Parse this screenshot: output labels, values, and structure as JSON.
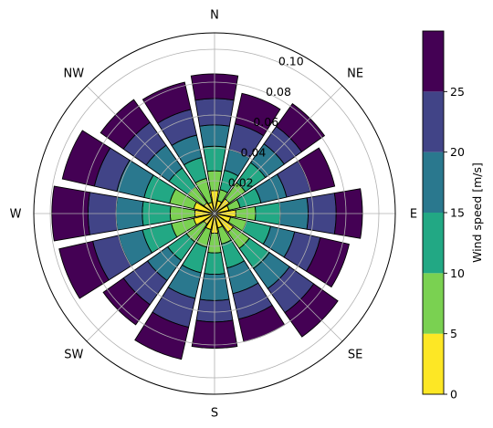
{
  "chart_data": {
    "type": "polar-bar",
    "title": "",
    "directions": [
      "N",
      "NE",
      "E",
      "SE",
      "S",
      "SW",
      "W",
      "NW"
    ],
    "radial_ticks": [
      0.02,
      0.04,
      0.06,
      0.08,
      0.1
    ],
    "radial_tick_labels": [
      "0.02",
      "0.04",
      "0.06",
      "0.08",
      "0.10"
    ],
    "rmax": 0.11,
    "sectors": 16,
    "sector_width_deg": 22.5,
    "colorbar": {
      "label": "Wind speed [m/s]",
      "ticks": [
        0,
        5,
        10,
        15,
        20,
        25
      ],
      "tick_labels": [
        "0",
        "5",
        "10",
        "15",
        "20",
        "25"
      ],
      "bins": [
        {
          "range": [
            0,
            5
          ],
          "color": "#fde725"
        },
        {
          "range": [
            5,
            10
          ],
          "color": "#7ad151"
        },
        {
          "range": [
            10,
            15
          ],
          "color": "#22a884"
        },
        {
          "range": [
            15,
            20
          ],
          "color": "#2a788e"
        },
        {
          "range": [
            20,
            25
          ],
          "color": "#414487"
        },
        {
          "range": [
            25,
            30
          ],
          "color": "#440154"
        }
      ]
    },
    "cumulative_frequencies": [
      [
        0.014,
        0.026,
        0.041,
        0.054,
        0.07,
        0.085
      ],
      [
        0.008,
        0.015,
        0.027,
        0.04,
        0.056,
        0.075
      ],
      [
        0.011,
        0.023,
        0.038,
        0.052,
        0.065,
        0.082
      ],
      [
        0.009,
        0.016,
        0.029,
        0.045,
        0.06,
        0.075
      ],
      [
        0.013,
        0.025,
        0.04,
        0.057,
        0.074,
        0.09
      ],
      [
        0.01,
        0.02,
        0.035,
        0.05,
        0.066,
        0.084
      ],
      [
        0.014,
        0.026,
        0.041,
        0.056,
        0.074,
        0.092
      ],
      [
        0.009,
        0.019,
        0.034,
        0.05,
        0.066,
        0.08
      ],
      [
        0.012,
        0.024,
        0.037,
        0.053,
        0.066,
        0.082
      ],
      [
        0.01,
        0.021,
        0.037,
        0.053,
        0.071,
        0.091
      ],
      [
        0.008,
        0.021,
        0.035,
        0.05,
        0.068,
        0.083
      ],
      [
        0.013,
        0.027,
        0.045,
        0.06,
        0.076,
        0.097
      ],
      [
        0.012,
        0.027,
        0.044,
        0.06,
        0.077,
        0.099
      ],
      [
        0.013,
        0.028,
        0.044,
        0.061,
        0.075,
        0.095
      ],
      [
        0.008,
        0.02,
        0.034,
        0.051,
        0.068,
        0.085
      ],
      [
        0.007,
        0.022,
        0.035,
        0.049,
        0.065,
        0.082
      ]
    ]
  }
}
